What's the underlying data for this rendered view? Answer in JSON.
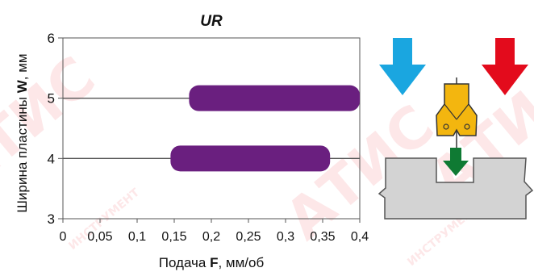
{
  "chart_data": {
    "type": "bar",
    "orientation": "horizontal-range",
    "title": "UR",
    "xlabel_parts": [
      "Подача ",
      "F",
      ", мм/об"
    ],
    "ylabel_parts": [
      "Ширина пластины ",
      "W",
      ", мм"
    ],
    "xlim": [
      0,
      0.4
    ],
    "ylim": [
      3,
      6
    ],
    "x_ticks": [
      0,
      0.05,
      0.1,
      0.15,
      0.2,
      0.25,
      0.3,
      0.35,
      0.4
    ],
    "x_tick_labels": [
      "0",
      "0,05",
      "0,1",
      "0,15",
      "0,2",
      "0,25",
      "0,3",
      "0,35",
      "0,4"
    ],
    "y_ticks": [
      3,
      4,
      5,
      6
    ],
    "y_tick_labels": [
      "3",
      "4",
      "5",
      "6"
    ],
    "grid": "horizontal",
    "ranges": [
      {
        "y": 5,
        "start": 0.17,
        "end": 0.4
      },
      {
        "y": 4,
        "start": 0.145,
        "end": 0.36
      }
    ],
    "bar_color": "#6a1f7f"
  },
  "illustration": {
    "arrow_left_color": "#1aa6e0",
    "arrow_right_color": "#e30b1c",
    "arrow_down_color": "#0f7a33",
    "insert_color": "#f3b60f",
    "workpiece_color": "#d3d3d3"
  },
  "watermark": {
    "text": "АТИС",
    "subtext": "ИНСТРУМЕНТ",
    "color": "#e30b1c"
  }
}
